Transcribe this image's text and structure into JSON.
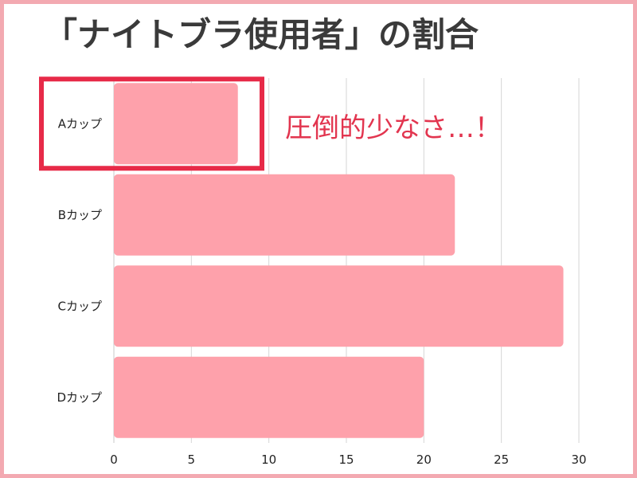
{
  "chart_data": {
    "type": "bar",
    "orientation": "horizontal",
    "title": "「ナイトブラ使用者」の割合",
    "categories": [
      "Aカップ",
      "Bカップ",
      "Cカップ",
      "Dカップ"
    ],
    "values": [
      8,
      22,
      29,
      20
    ],
    "xlim": [
      0,
      30
    ],
    "xticks": [
      "0",
      "5",
      "10",
      "15",
      "20",
      "25",
      "30"
    ],
    "xlabel": "",
    "ylabel": "",
    "grid": true,
    "bar_color": "#fea1ab",
    "highlight": {
      "category": "Aカップ",
      "box_color": "#e72a48",
      "text": "圧倒的少なさ…！"
    }
  },
  "colors": {
    "frame": "#f3a9b1",
    "title": "#3a3a3a",
    "grid": "#d6d6d6"
  }
}
